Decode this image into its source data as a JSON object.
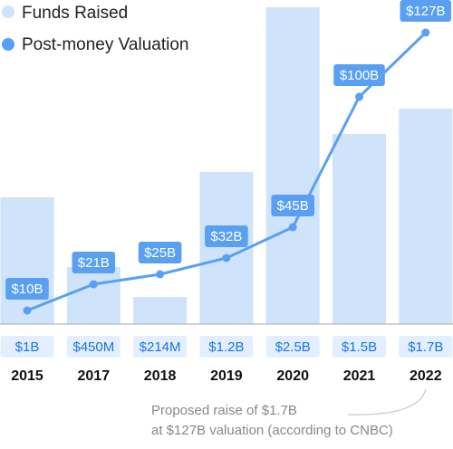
{
  "colors": {
    "bar": "#cfe3fb",
    "line": "#5aa0f2",
    "label_bg": "#5aa0f2",
    "fund_label_bg": "#e3efff",
    "fund_label_text": "#1a73e8",
    "baseline": "#b7b7b7"
  },
  "legend": [
    {
      "label": "Funds Raised",
      "marker": "light-circle"
    },
    {
      "label": "Post-money Valuation",
      "marker": "blue-circle"
    }
  ],
  "annotation": {
    "line1": "Proposed raise of $1.7B",
    "line2": "at $127B valuation (according to CNBC)"
  },
  "chart_data": {
    "type": "bar+line",
    "categories": [
      "2015",
      "2017",
      "2018",
      "2019",
      "2020",
      "2021",
      "2022"
    ],
    "series": [
      {
        "name": "Funds Raised",
        "kind": "bar",
        "values": [
          1,
          0.45,
          0.214,
          1.2,
          2.5,
          1.5,
          1.7
        ],
        "labels": [
          "$1B",
          "$450M",
          "$214M",
          "$1.2B",
          "$2.5B",
          "$1.5B",
          "$1.7B"
        ]
      },
      {
        "name": "Post-money Valuation",
        "kind": "line",
        "values": [
          10,
          21,
          25,
          32,
          45,
          100,
          127
        ],
        "labels": [
          "$10B",
          "$21B",
          "$25B",
          "$32B",
          "$45B",
          "$100B",
          "$127B"
        ]
      }
    ]
  }
}
